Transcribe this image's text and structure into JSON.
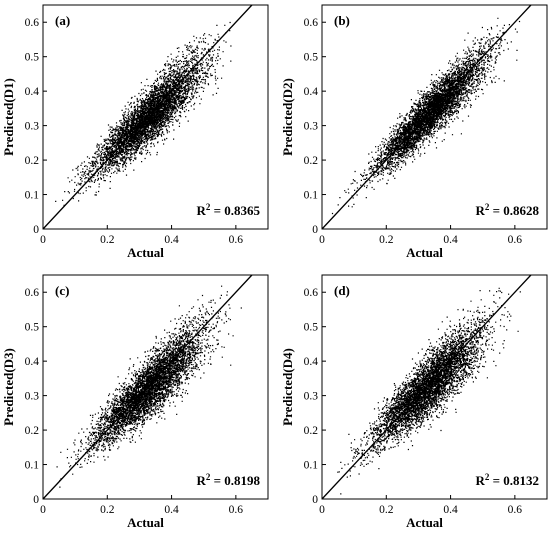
{
  "chart_data": [
    {
      "type": "scatter",
      "panel_label": "(a)",
      "xlabel": "Actual",
      "ylabel": "Predicted(D1)",
      "xlim": [
        0,
        0.7
      ],
      "ylim": [
        0,
        0.65
      ],
      "xticks": [
        "0",
        "0.2",
        "0.4",
        "0.6"
      ],
      "yticks": [
        "0",
        "0.1",
        "0.2",
        "0.3",
        "0.4",
        "0.5",
        "0.6"
      ],
      "r2_text": "R² = 0.8365",
      "reference_line": "y = x",
      "point_color": "#000000",
      "cloud": {
        "x_mean": 0.33,
        "x_sd": 0.085,
        "slope": 0.86,
        "intercept": 0.045,
        "residual_sd": 0.04,
        "x_range": [
          0.02,
          0.62
        ]
      }
    },
    {
      "type": "scatter",
      "panel_label": "(b)",
      "xlabel": "Actual",
      "ylabel": "Predicted(D2)",
      "xlim": [
        0,
        0.7
      ],
      "ylim": [
        0,
        0.65
      ],
      "xticks": [
        "0",
        "0.2",
        "0.4",
        "0.6"
      ],
      "yticks": [
        "0",
        "0.1",
        "0.2",
        "0.3",
        "0.4",
        "0.5",
        "0.6"
      ],
      "r2_text": "R² = 0.8628",
      "reference_line": "y = x",
      "point_color": "#000000",
      "cloud": {
        "x_mean": 0.34,
        "x_sd": 0.085,
        "slope": 0.92,
        "intercept": 0.03,
        "residual_sd": 0.035,
        "x_range": [
          0.02,
          0.64
        ]
      }
    },
    {
      "type": "scatter",
      "panel_label": "(c)",
      "xlabel": "Actual",
      "ylabel": "Predicted(D3)",
      "xlim": [
        0,
        0.7
      ],
      "ylim": [
        0,
        0.65
      ],
      "xticks": [
        "0",
        "0.2",
        "0.4",
        "0.6"
      ],
      "yticks": [
        "0",
        "0.1",
        "0.2",
        "0.3",
        "0.4",
        "0.5",
        "0.6"
      ],
      "r2_text": "R² = 0.8198",
      "reference_line": "y = x",
      "point_color": "#000000",
      "cloud": {
        "x_mean": 0.33,
        "x_sd": 0.085,
        "slope": 0.85,
        "intercept": 0.045,
        "residual_sd": 0.043,
        "x_range": [
          0.02,
          0.62
        ]
      }
    },
    {
      "type": "scatter",
      "panel_label": "(d)",
      "xlabel": "Actual",
      "ylabel": "Predicted(D4)",
      "xlim": [
        0,
        0.7
      ],
      "ylim": [
        0,
        0.65
      ],
      "xticks": [
        "0",
        "0.2",
        "0.4",
        "0.6"
      ],
      "yticks": [
        "0",
        "0.1",
        "0.2",
        "0.3",
        "0.4",
        "0.5",
        "0.6"
      ],
      "r2_text": "R² = 0.8132",
      "reference_line": "y = x",
      "point_color": "#000000",
      "cloud": {
        "x_mean": 0.33,
        "x_sd": 0.085,
        "slope": 0.88,
        "intercept": 0.04,
        "residual_sd": 0.044,
        "x_range": [
          0.02,
          0.62
        ]
      }
    }
  ]
}
